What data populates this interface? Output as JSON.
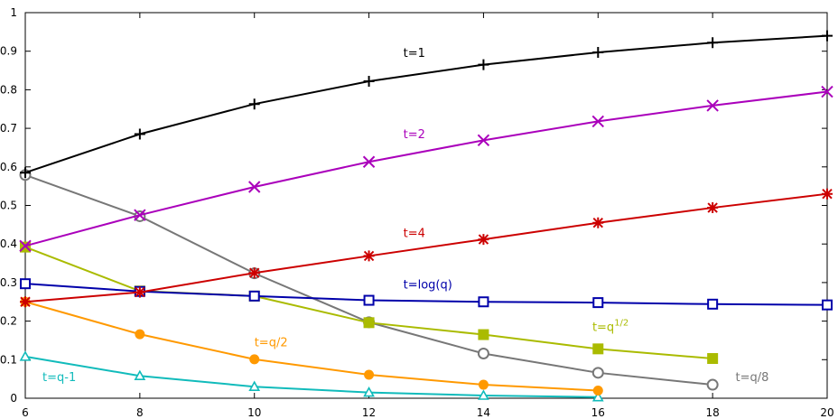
{
  "chart_data": {
    "type": "line",
    "title": "",
    "xlabel": "",
    "ylabel": "",
    "xlim": [
      6,
      20
    ],
    "ylim": [
      0,
      1
    ],
    "grid": false,
    "x_ticks": [
      "6",
      "8",
      "10",
      "12",
      "14",
      "16",
      "18",
      "20"
    ],
    "y_ticks": [
      "0",
      "0.1",
      "0.2",
      "0.3",
      "0.4",
      "0.5",
      "0.6",
      "0.7",
      "0.8",
      "0.9",
      "1"
    ],
    "series": [
      {
        "name": "t=1",
        "color": "#000000",
        "marker": "plus",
        "x": [
          6,
          8,
          10,
          12,
          14,
          16,
          18,
          20
        ],
        "y": [
          0.585,
          0.685,
          0.763,
          0.822,
          0.865,
          0.897,
          0.922,
          0.94
        ]
      },
      {
        "name": "t=2",
        "color": "#aa00bb",
        "marker": "cross",
        "x": [
          6,
          8,
          10,
          12,
          14,
          16,
          18,
          20
        ],
        "y": [
          0.395,
          0.475,
          0.548,
          0.613,
          0.669,
          0.718,
          0.759,
          0.795
        ]
      },
      {
        "name": "t=4",
        "color": "#cc0000",
        "marker": "star",
        "x": [
          6,
          8,
          10,
          12,
          14,
          16,
          18,
          20
        ],
        "y": [
          0.25,
          0.275,
          0.325,
          0.369,
          0.412,
          0.455,
          0.494,
          0.53
        ]
      },
      {
        "name": "t=log(q)",
        "color": "#0000aa",
        "marker": "square-open",
        "x": [
          6,
          8,
          10,
          12,
          14,
          16,
          18,
          20
        ],
        "y": [
          0.297,
          0.277,
          0.265,
          0.254,
          0.25,
          0.248,
          0.244,
          0.242
        ]
      },
      {
        "name": "t=q^{1/2}",
        "color": "#aabb00",
        "marker": "square-filled",
        "x": [
          6,
          8,
          10,
          12,
          14,
          16,
          18
        ],
        "y": [
          0.392,
          0.278,
          0.265,
          0.196,
          0.165,
          0.128,
          0.103
        ]
      },
      {
        "name": "t=q/2",
        "color": "#ff9900",
        "marker": "circle-filled",
        "x": [
          6,
          8,
          10,
          12,
          14,
          16
        ],
        "y": [
          0.25,
          0.166,
          0.101,
          0.061,
          0.035,
          0.02
        ]
      },
      {
        "name": "t=q/8",
        "color": "#777777",
        "marker": "circle-open",
        "x": [
          6,
          8,
          10,
          12,
          14,
          16,
          18
        ],
        "y": [
          0.579,
          0.472,
          0.324,
          0.197,
          0.116,
          0.066,
          0.035
        ]
      },
      {
        "name": "t=q-1",
        "color": "#11bbbb",
        "marker": "triangle-open",
        "x": [
          6,
          8,
          10,
          12,
          14,
          16
        ],
        "y": [
          0.108,
          0.058,
          0.03,
          0.015,
          0.007,
          0.003
        ]
      }
    ],
    "labels": [
      {
        "text": "t=1",
        "series": 0,
        "x": 12.6,
        "y": 0.885
      },
      {
        "text": "t=2",
        "series": 1,
        "x": 12.6,
        "y": 0.675
      },
      {
        "text": "t=4",
        "series": 2,
        "x": 12.6,
        "y": 0.418
      },
      {
        "text": "t=log(q)",
        "series": 3,
        "x": 12.6,
        "y": 0.285
      },
      {
        "text": "t=q",
        "sup": "1/2",
        "series": 4,
        "x": 15.9,
        "y": 0.175
      },
      {
        "text": "t=q/2",
        "series": 5,
        "x": 10.0,
        "y": 0.135
      },
      {
        "text": "t=q/8",
        "series": 6,
        "x": 18.4,
        "y": 0.045
      },
      {
        "text": "t=q-1",
        "series": 7,
        "x": 6.3,
        "y": 0.045
      }
    ]
  }
}
